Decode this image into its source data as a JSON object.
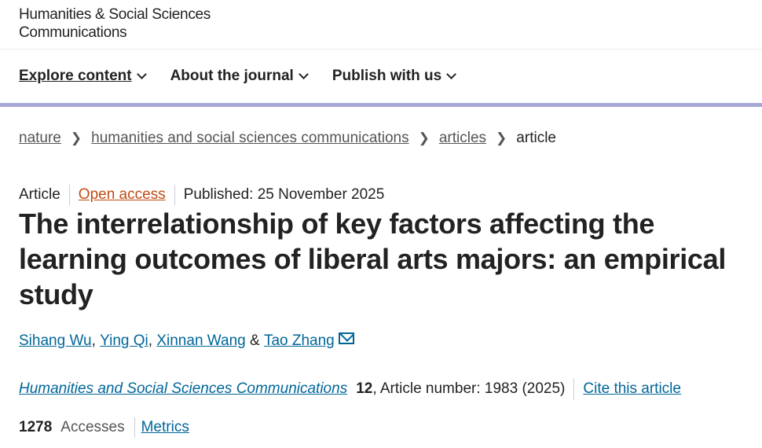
{
  "journal_logo": {
    "line1": "Humanities & Social Sciences",
    "line2": "Communications"
  },
  "nav": [
    {
      "label": "Explore content"
    },
    {
      "label": "About the journal"
    },
    {
      "label": "Publish with us"
    }
  ],
  "breadcrumbs": [
    "nature",
    "humanities and social sciences communications",
    "articles",
    "article"
  ],
  "meta": {
    "type": "Article",
    "access": "Open access",
    "published": "Published: 25 November 2025"
  },
  "title": "The interrelationship of key factors affecting the learning outcomes of liberal arts majors: an empirical study",
  "authors": [
    "Sihang Wu",
    "Ying Qi",
    "Xinnan Wang",
    "Tao Zhang"
  ],
  "citation": {
    "journal": "Humanities and Social Sciences Communications",
    "volume": "12",
    "rest": ", Article number: 1983 (2025)",
    "cite_label": "Cite this article"
  },
  "metrics": {
    "accesses": "1278",
    "accesses_label": "Accesses",
    "metrics_label": "Metrics"
  },
  "colors": {
    "link": "#006699",
    "open_access": "#c04b12",
    "nav_bar": "#a6a8d6"
  }
}
